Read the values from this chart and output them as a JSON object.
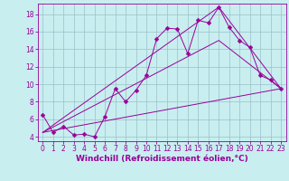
{
  "xlabel": "Windchill (Refroidissement éolien,°C)",
  "bg_color": "#c8eef0",
  "grid_color": "#9bbfc8",
  "line_color": "#990099",
  "xlim": [
    -0.5,
    23.5
  ],
  "ylim": [
    3.5,
    19.2
  ],
  "xticks": [
    0,
    1,
    2,
    3,
    4,
    5,
    6,
    7,
    8,
    9,
    10,
    11,
    12,
    13,
    14,
    15,
    16,
    17,
    18,
    19,
    20,
    21,
    22,
    23
  ],
  "yticks": [
    4,
    6,
    8,
    10,
    12,
    14,
    16,
    18
  ],
  "line1_x": [
    0,
    1,
    2,
    3,
    4,
    5,
    6,
    7,
    8,
    9,
    10,
    11,
    12,
    13,
    14,
    15,
    16,
    17,
    18,
    19,
    20,
    21,
    22,
    23
  ],
  "line1_y": [
    6.5,
    4.5,
    5.2,
    4.2,
    4.3,
    4.0,
    6.3,
    9.5,
    8.0,
    9.3,
    11.0,
    15.2,
    16.4,
    16.3,
    13.5,
    17.3,
    17.0,
    18.8,
    16.5,
    15.0,
    14.2,
    11.0,
    10.5,
    9.5
  ],
  "line2_x": [
    0,
    17,
    23
  ],
  "line2_y": [
    4.5,
    18.8,
    9.5
  ],
  "line3_x": [
    0,
    17,
    23
  ],
  "line3_y": [
    4.5,
    15.0,
    9.5
  ],
  "line4_x": [
    0,
    23
  ],
  "line4_y": [
    4.5,
    9.5
  ],
  "marker_size": 2.5,
  "tick_fontsize": 5.5,
  "xlabel_fontsize": 6.5
}
